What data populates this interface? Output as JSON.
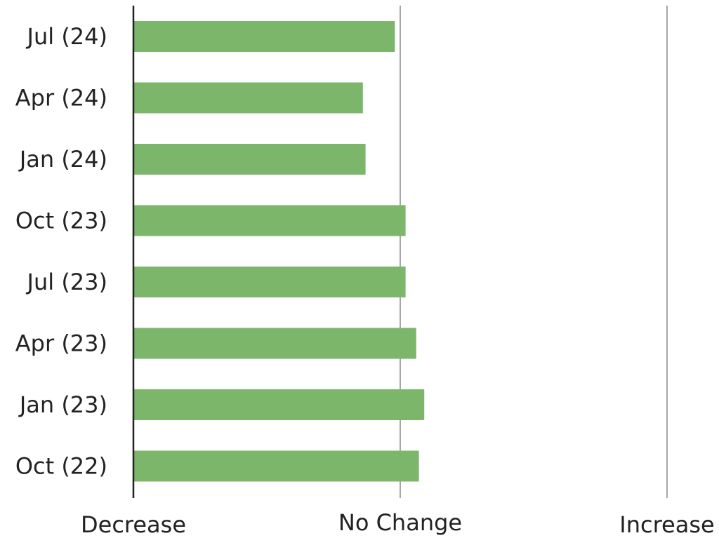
{
  "chart_data": {
    "type": "bar",
    "orientation": "horizontal",
    "categories": [
      "Jul (24)",
      "Apr (24)",
      "Jan (24)",
      "Oct (23)",
      "Jul (23)",
      "Apr (23)",
      "Jan (23)",
      "Oct (22)"
    ],
    "values": [
      0.98,
      0.86,
      0.87,
      1.02,
      1.02,
      1.06,
      1.09,
      1.07
    ],
    "xlim": [
      0,
      2
    ],
    "x_ticks": [
      0,
      1,
      2
    ],
    "x_tick_labels": [
      "Decrease",
      "No Change",
      "Increase"
    ],
    "title": "",
    "xlabel": "",
    "ylabel": "",
    "grid": true,
    "legend": "none",
    "bar_color": "#7cb66b",
    "axis_color": "#222222",
    "grid_color": "#a6a6a6"
  }
}
